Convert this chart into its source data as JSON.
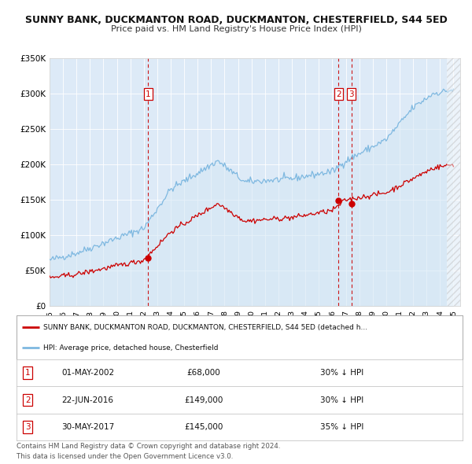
{
  "title": "SUNNY BANK, DUCKMANTON ROAD, DUCKMANTON, CHESTERFIELD, S44 5ED",
  "subtitle": "Price paid vs. HM Land Registry's House Price Index (HPI)",
  "hpi_color": "#7eb8e0",
  "hpi_fill_color": "#d6e8f5",
  "price_color": "#cc0000",
  "marker_color": "#cc0000",
  "plot_bg": "#ddeaf7",
  "fig_bg": "#ffffff",
  "grid_color": "#ffffff",
  "ylim": [
    0,
    350000
  ],
  "yticks": [
    0,
    50000,
    100000,
    150000,
    200000,
    250000,
    300000,
    350000
  ],
  "ytick_labels": [
    "£0",
    "£50K",
    "£100K",
    "£150K",
    "£200K",
    "£250K",
    "£300K",
    "£350K"
  ],
  "xlim_start": 1995.0,
  "xlim_end": 2025.5,
  "hatch_start": 2024.5,
  "sale_dates": [
    2002.33,
    2016.47,
    2017.41
  ],
  "sale_prices": [
    68000,
    149000,
    145000
  ],
  "sale_labels": [
    "1",
    "2",
    "3"
  ],
  "transaction_rows": [
    {
      "label": "1",
      "date": "01-MAY-2002",
      "price": "£68,000",
      "note": "30% ↓ HPI"
    },
    {
      "label": "2",
      "date": "22-JUN-2016",
      "price": "£149,000",
      "note": "30% ↓ HPI"
    },
    {
      "label": "3",
      "date": "30-MAY-2017",
      "price": "£145,000",
      "note": "35% ↓ HPI"
    }
  ],
  "legend_line1": "SUNNY BANK, DUCKMANTON ROAD, DUCKMANTON, CHESTERFIELD, S44 5ED (detached h...",
  "legend_line2": "HPI: Average price, detached house, Chesterfield",
  "footnote1": "Contains HM Land Registry data © Crown copyright and database right 2024.",
  "footnote2": "This data is licensed under the Open Government Licence v3.0."
}
